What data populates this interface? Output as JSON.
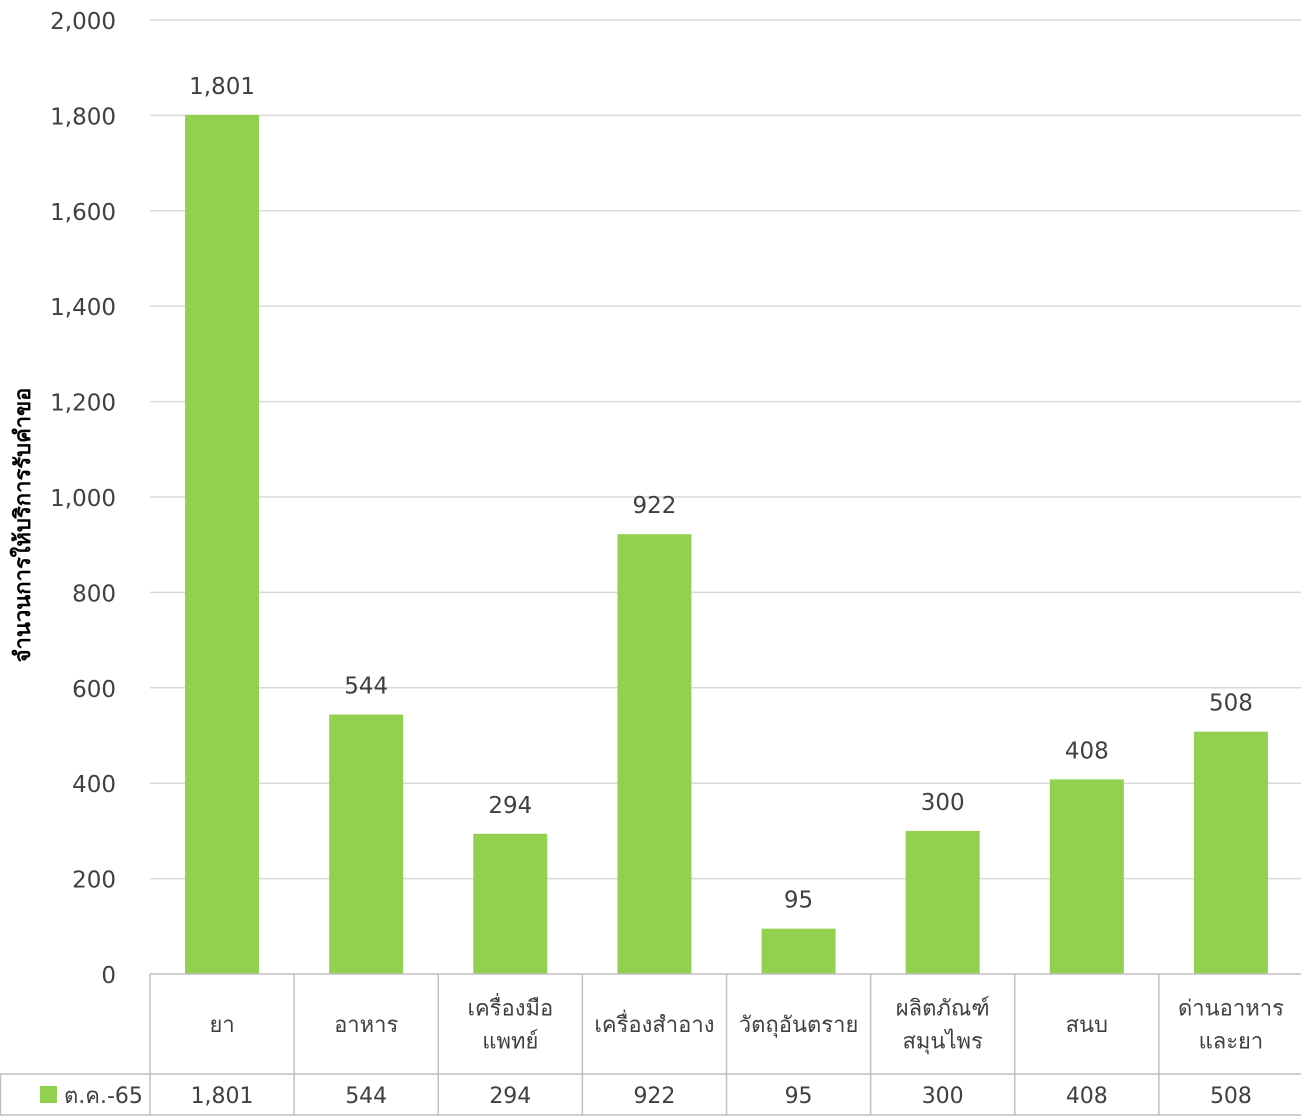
{
  "chart_data": {
    "type": "bar",
    "categories": [
      [
        "ยา"
      ],
      [
        "อาหาร"
      ],
      [
        "เครื่องมือ",
        "แพทย์"
      ],
      [
        "เครื่องสำอาง"
      ],
      [
        "วัตถุอันตราย"
      ],
      [
        "ผลิตภัณฑ์",
        "สมุนไพร"
      ],
      [
        "สนบ"
      ],
      [
        "ด่านอาหาร",
        "และยา"
      ]
    ],
    "series": [
      {
        "name": "ต.ค.-65",
        "values": [
          1801,
          544,
          294,
          922,
          95,
          300,
          408,
          508
        ]
      }
    ],
    "value_labels": [
      "1,801",
      "544",
      "294",
      "922",
      "95",
      "300",
      "408",
      "508"
    ],
    "ylabel": "จำนวนการให้บริการรับคำขอ",
    "ylim": [
      0,
      2000
    ],
    "yticks": [
      "0",
      "200",
      "400",
      "600",
      "800",
      "1,000",
      "1,200",
      "1,400",
      "1,600",
      "1,800",
      "2,000"
    ],
    "grid": true,
    "data_table": true,
    "colors": {
      "bar": "#92d050",
      "grid": "#d9d9d9",
      "table_border": "#bfbfbf",
      "text": "#404040"
    }
  }
}
